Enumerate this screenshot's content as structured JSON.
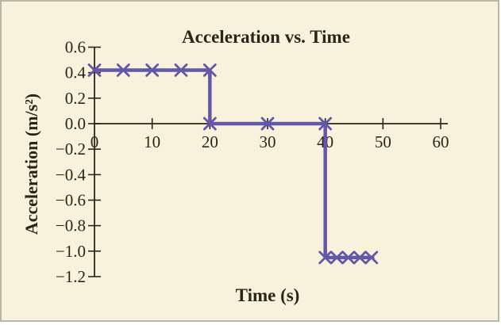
{
  "figure": {
    "background": "#f8f2dd",
    "border_color": "#b5b8a6",
    "axis_color": "#2c2417",
    "line_color": "#6358a7"
  },
  "chart_data": {
    "type": "line",
    "title": "Acceleration vs. Time",
    "xlabel": "Time (s)",
    "ylabel": "Acceleration (m/s²)",
    "xlim": [
      0,
      60
    ],
    "ylim": [
      -1.2,
      0.6
    ],
    "xticks": [
      0,
      10,
      20,
      30,
      40,
      50,
      60
    ],
    "yticks": [
      0.6,
      0.4,
      0.2,
      0.0,
      -0.2,
      -0.4,
      -0.6,
      -0.8,
      -1.0,
      -1.2
    ],
    "grid": false,
    "legend": "none",
    "marker_style": "x",
    "series": [
      {
        "name": "acceleration",
        "line_points": [
          [
            0,
            0.42
          ],
          [
            20,
            0.42
          ],
          [
            20,
            0
          ],
          [
            40,
            0
          ],
          [
            40,
            -1.05
          ],
          [
            48.5,
            -1.05
          ]
        ],
        "marker_points": [
          [
            0,
            0.42
          ],
          [
            5,
            0.42
          ],
          [
            10,
            0.42
          ],
          [
            15,
            0.42
          ],
          [
            20,
            0.42
          ],
          [
            20,
            0
          ],
          [
            30,
            0
          ],
          [
            40,
            0
          ],
          [
            40,
            -1.05
          ],
          [
            42,
            -1.05
          ],
          [
            44,
            -1.05
          ],
          [
            46,
            -1.05
          ],
          [
            48,
            -1.05
          ]
        ]
      }
    ]
  }
}
